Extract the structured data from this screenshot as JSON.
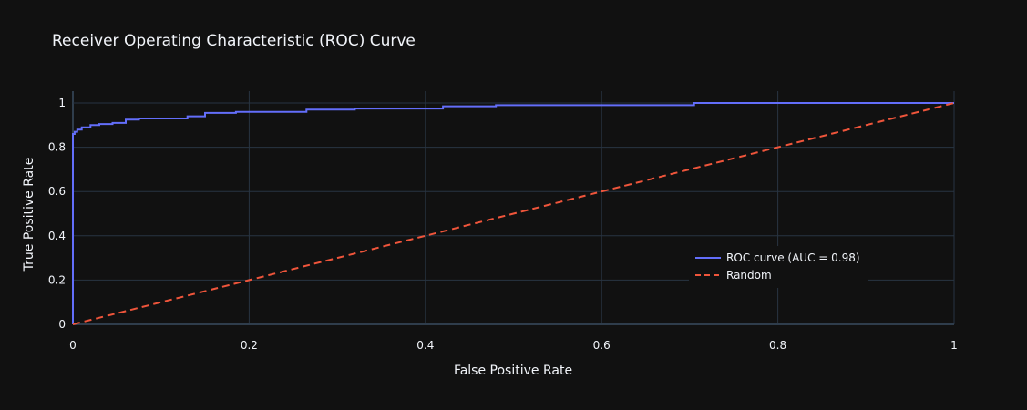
{
  "chart_data": {
    "type": "line",
    "title": "Receiver Operating Characteristic (ROC) Curve",
    "xlabel": "False Positive Rate",
    "ylabel": "True Positive Rate",
    "xlim": [
      0,
      1
    ],
    "ylim": [
      0,
      1
    ],
    "x_ticks": [
      0,
      0.2,
      0.4,
      0.6,
      0.8,
      1
    ],
    "x_tick_labels": [
      "0",
      "0.2",
      "0.4",
      "0.6",
      "0.8",
      "1"
    ],
    "y_ticks": [
      0,
      0.2,
      0.4,
      0.6,
      0.8,
      1
    ],
    "y_tick_labels": [
      "0",
      "0.2",
      "0.4",
      "0.6",
      "0.8",
      "1"
    ],
    "grid": true,
    "legend_position": "bottom-right",
    "series": [
      {
        "name": "ROC curve (AUC = 0.98)",
        "color": "#636efa",
        "dash": "solid",
        "x": [
          0,
          0,
          0.002,
          0.002,
          0.005,
          0.005,
          0.01,
          0.01,
          0.02,
          0.02,
          0.03,
          0.03,
          0.045,
          0.045,
          0.06,
          0.06,
          0.075,
          0.075,
          0.13,
          0.13,
          0.15,
          0.15,
          0.185,
          0.185,
          0.265,
          0.265,
          0.32,
          0.32,
          0.42,
          0.42,
          0.48,
          0.48,
          0.705,
          0.705,
          1
        ],
        "y": [
          0,
          0.86,
          0.86,
          0.87,
          0.87,
          0.88,
          0.88,
          0.89,
          0.89,
          0.9,
          0.9,
          0.905,
          0.905,
          0.91,
          0.91,
          0.925,
          0.925,
          0.93,
          0.93,
          0.94,
          0.94,
          0.955,
          0.955,
          0.96,
          0.96,
          0.97,
          0.97,
          0.975,
          0.975,
          0.985,
          0.985,
          0.99,
          0.99,
          1.0,
          1.0
        ]
      },
      {
        "name": "Random",
        "color": "#ef553b",
        "dash": "dashed",
        "x": [
          0,
          1
        ],
        "y": [
          0,
          1
        ]
      }
    ]
  },
  "colors": {
    "background": "#111111",
    "grid": "#283442",
    "zeroline": "#2f3d4c",
    "text": "#f2f5fa"
  }
}
